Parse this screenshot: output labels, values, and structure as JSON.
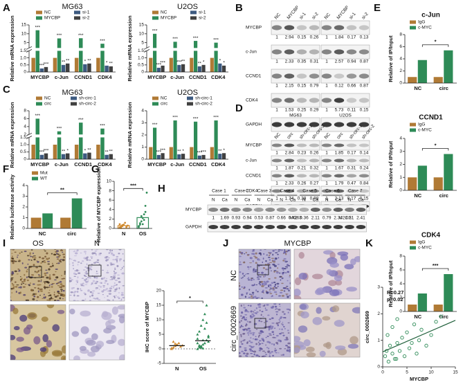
{
  "A": {
    "label": "A",
    "charts": [
      {
        "type": "bar",
        "title": "MG63",
        "ylabel": "Relative mRNA expression",
        "categories": [
          "MYCBP",
          "c-Jun",
          "CCND1",
          "CDK4"
        ],
        "ylim": [
          0,
          15
        ],
        "ybreak": [
          1.5,
          2
        ],
        "yticks": [
          0,
          0.5,
          {
            "value": 1,
            "label": "1.0"
          },
          1.5,
          5,
          10,
          15
        ],
        "series": [
          {
            "name": "NC",
            "color": "#b07a35",
            "values": [
              1,
              1,
              1,
              1
            ]
          },
          {
            "name": "MYCBP",
            "color": "#2e8b57",
            "values": [
              12,
              7.4,
              7.5,
              4.4
            ],
            "sig": [
              "***",
              "***",
              "***",
              "***"
            ]
          },
          {
            "name": "si-1",
            "color": "#3d5a80",
            "values": [
              0.25,
              0.5,
              0.55,
              0.45
            ],
            "sig": [
              "***",
              "**",
              "*",
              "*"
            ]
          },
          {
            "name": "si-2",
            "color": "#404040",
            "values": [
              0.35,
              0.6,
              0.6,
              0.4
            ],
            "sig": [
              "***",
              "**",
              "**",
              "**"
            ]
          }
        ]
      },
      {
        "type": "bar",
        "title": "U2OS",
        "ylabel": "Relative mRNA expression",
        "categories": [
          "MYCBP",
          "c-Jun",
          "CCND1",
          "CDK4"
        ],
        "ylim": [
          0,
          15
        ],
        "ybreak": [
          1.5,
          2
        ],
        "yticks": [
          0,
          0.5,
          {
            "value": 1,
            "label": "1.0"
          },
          1.5,
          5,
          10,
          15
        ],
        "series": [
          {
            "name": "NC",
            "color": "#b07a35",
            "values": [
              1,
              1,
              1,
              1
            ]
          },
          {
            "name": "MYCBP",
            "color": "#2e8b57",
            "values": [
              10,
              5.5,
              6,
              5
            ],
            "sig": [
              "***",
              "***",
              "***",
              "***"
            ]
          },
          {
            "name": "si-1",
            "color": "#3d5a80",
            "values": [
              0.3,
              0.5,
              0.4,
              0.6
            ],
            "sig": [
              "***",
              "***",
              "**",
              "*"
            ]
          },
          {
            "name": "si-2",
            "color": "#404040",
            "values": [
              0.45,
              0.55,
              0.5,
              0.45
            ],
            "sig": [
              "***",
              "**",
              "*",
              "*"
            ]
          }
        ]
      }
    ]
  },
  "B": {
    "label": "B",
    "blot": {
      "columns": [
        "NC",
        "MYCBP",
        "si-1",
        "si-2",
        "NC",
        "MYCBP",
        "si-1",
        "si-2"
      ],
      "rows": [
        {
          "label": "MYCBP",
          "values": [
            1,
            2.94,
            0.15,
            0.26,
            1,
            1.84,
            0.17,
            0.13
          ]
        },
        {
          "label": "c-Jun",
          "values": [
            1,
            2.33,
            0.35,
            0.31,
            1,
            2.57,
            0.94,
            0.87
          ]
        },
        {
          "label": "CCND1",
          "values": [
            1,
            2.15,
            0.15,
            0.79,
            1,
            0.12,
            0.66,
            0.87
          ]
        },
        {
          "label": "CDK4",
          "values": [
            1,
            1.53,
            0.25,
            0.29,
            1,
            5.73,
            0.11,
            0.15
          ]
        },
        {
          "label": "GAPDH"
        }
      ]
    }
  },
  "C": {
    "label": "C",
    "charts": [
      {
        "type": "bar",
        "title": "MG63",
        "ylabel": "Relative mRNA expression",
        "categories": [
          "MYCBP",
          "c-Jun",
          "CCND1",
          "CDK4"
        ],
        "ylim": [
          0,
          8
        ],
        "ybreak": [
          1.5,
          2
        ],
        "yticks": [
          0,
          0.5,
          {
            "value": 1,
            "label": "1.0"
          },
          1.5,
          2,
          4,
          6,
          8
        ],
        "series": [
          {
            "name": "NC",
            "color": "#b07a35",
            "values": [
              1,
              1,
              1,
              1
            ]
          },
          {
            "name": "circ",
            "color": "#2e8b57",
            "values": [
              6,
              2.8,
              5,
              3.5
            ],
            "sig": [
              "***",
              "***",
              "***",
              "***"
            ]
          },
          {
            "name": "sh-circ-1",
            "color": "#3d5a80",
            "values": [
              0.3,
              0.35,
              0.4,
              0.3
            ],
            "sig": [
              "***",
              "**",
              "*",
              "**"
            ]
          },
          {
            "name": "sh-circ-2",
            "color": "#404040",
            "values": [
              0.4,
              0.4,
              0.45,
              0.35
            ],
            "sig": [
              "***",
              "*",
              "**",
              "**"
            ]
          }
        ]
      },
      {
        "type": "bar",
        "title": "U2OS",
        "ylabel": "Relative mRNA expression",
        "categories": [
          "MYCBP",
          "c-Jun",
          "CCND1",
          "CDK4"
        ],
        "ylim": [
          0,
          4
        ],
        "yticks": [
          0,
          1,
          2,
          3,
          4
        ],
        "series": [
          {
            "name": "NC",
            "color": "#b07a35",
            "values": [
              1,
              1,
              1,
              1
            ]
          },
          {
            "name": "circ",
            "color": "#2e8b57",
            "values": [
              2.6,
              3.2,
              3.1,
              3.2
            ],
            "sig": [
              "***",
              "***",
              "***",
              "***"
            ]
          },
          {
            "name": "sh-circ-1",
            "color": "#3d5a80",
            "values": [
              0.35,
              0.4,
              0.3,
              0.45
            ],
            "sig": [
              "***",
              "**",
              "***",
              "**"
            ]
          },
          {
            "name": "sh-circ-2",
            "color": "#404040",
            "values": [
              0.5,
              0.45,
              0.35,
              0.5
            ],
            "sig": [
              "***",
              "*",
              "***",
              "*"
            ]
          }
        ]
      }
    ]
  },
  "D": {
    "label": "D",
    "blot": {
      "groups": [
        "MG63",
        "U2OS"
      ],
      "columns": [
        "NC",
        "circ",
        "sh-circ-1",
        "sh-circ-2",
        "NC",
        "circ",
        "sh-circ-1",
        "sh-circ-2"
      ],
      "rows": [
        {
          "label": "MYCBP",
          "values": [
            1,
            2.84,
            0.23,
            0.26,
            1,
            1.85,
            0.17,
            0.14
          ]
        },
        {
          "label": "c-Jun",
          "values": [
            1,
            1.87,
            0.21,
            0.32,
            1,
            1.67,
            0.31,
            0.24
          ]
        },
        {
          "label": "CCND1",
          "values": [
            1,
            2.33,
            0.26,
            0.27,
            1,
            1.79,
            0.47,
            0.84
          ]
        },
        {
          "label": "CDK4",
          "values": [
            1,
            1.74,
            0.38,
            0.88,
            1,
            2.13,
            0.17,
            0.15
          ]
        },
        {
          "label": "GAPDH"
        }
      ]
    }
  },
  "E": {
    "label": "E",
    "charts": [
      {
        "type": "bar",
        "title": "c-Jun",
        "ylabel": "Relative of IP/Input",
        "categories": [
          "NC",
          "circ"
        ],
        "ylim": [
          0,
          8
        ],
        "yticks": [
          0,
          2,
          4,
          6,
          8
        ],
        "sig_bracket": "*",
        "series": [
          {
            "name": "IgG",
            "color": "#b07a35",
            "values": [
              1,
              1
            ]
          },
          {
            "name": "c-MYC",
            "color": "#2e8b57",
            "values": [
              3.8,
              5.4
            ]
          }
        ]
      },
      {
        "type": "bar",
        "title": "CCND1",
        "ylabel": "Relative of IP/Input",
        "categories": [
          "NC",
          "circ"
        ],
        "ylim": [
          0,
          4
        ],
        "yticks": [
          0,
          1,
          2,
          3,
          4
        ],
        "sig_bracket": "*",
        "series": [
          {
            "name": "IgG",
            "color": "#b07a35",
            "values": [
              1,
              1
            ]
          },
          {
            "name": "c-MYC",
            "color": "#2e8b57",
            "values": [
              1.9,
              2.8
            ]
          }
        ]
      },
      {
        "type": "bar",
        "title": "CDK4",
        "ylabel": "Relative of IP/Input",
        "categories": [
          "NC",
          "circ"
        ],
        "ylim": [
          0,
          8
        ],
        "yticks": [
          0,
          2,
          4,
          6,
          8
        ],
        "sig_bracket": "***",
        "series": [
          {
            "name": "IgG",
            "color": "#b07a35",
            "values": [
              1,
              1
            ]
          },
          {
            "name": "c-MYC",
            "color": "#2e8b57",
            "values": [
              2.6,
              5.4
            ]
          }
        ]
      }
    ]
  },
  "F": {
    "label": "F",
    "chart": {
      "type": "bar",
      "ylabel": "Relative luciferase activity",
      "categories": [
        "NC",
        "circ"
      ],
      "ylim": [
        0,
        4
      ],
      "yticks": [
        0,
        1,
        2,
        3,
        4
      ],
      "sig_bracket": "**",
      "series": [
        {
          "name": "Mut",
          "color": "#b07a35",
          "values": [
            1,
            1
          ]
        },
        {
          "name": "WT",
          "color": "#2e8b57",
          "values": [
            1.4,
            2.8
          ]
        }
      ]
    }
  },
  "G": {
    "label": "G",
    "chart": {
      "type": "bar_points",
      "ylabel": "Relative of MYCBP expression",
      "categories": [
        "N",
        "OS"
      ],
      "colors": [
        "#d08a2e",
        "#2e8b57"
      ],
      "ylim": [
        0,
        10
      ],
      "yticks": [
        0,
        2,
        4,
        6,
        8,
        10
      ],
      "sig_bracket": "***",
      "values": [
        0.6,
        2.3
      ],
      "points": [
        [
          0.2,
          0.4,
          0.5,
          0.8,
          1.2,
          0.3,
          0.6,
          0.9,
          0.1,
          0.7
        ],
        [
          0.3,
          0.8,
          1.5,
          2.2,
          3.0,
          4.8,
          7.6,
          0.5,
          1.1,
          2.6,
          0.9,
          1.8,
          3.5
        ]
      ]
    }
  },
  "H": {
    "label": "H",
    "blot": {
      "cases": [
        "Case 1",
        "Case 2",
        "Case 3",
        "Case 4",
        "Case 5",
        "Case 6",
        "Case 7"
      ],
      "lanes": [
        "N",
        "Ca"
      ],
      "rows": [
        {
          "label": "MYCBP",
          "values": [
            1,
            1.69,
            0.93,
            0.94,
            0.53,
            0.87,
            0.66,
            0.42,
            0.36,
            2.11,
            0.79,
            2.34,
            1.21,
            2.41
          ]
        },
        {
          "label": "GAPDH"
        }
      ]
    }
  },
  "I": {
    "label": "I",
    "images": [
      "OS",
      "N"
    ],
    "chart": {
      "type": "dot",
      "ylabel": "IHC score of MYCBP",
      "categories": [
        "N",
        "OS"
      ],
      "colors": [
        "#d08a2e",
        "#2e8b57"
      ],
      "ylim": [
        -5,
        20
      ],
      "yticks": [
        -5,
        0,
        5,
        10,
        15,
        20
      ],
      "sig_bracket": "*",
      "values": [
        1.1,
        2.8
      ],
      "points": [
        [
          0,
          0.5,
          1,
          1.5,
          2,
          0.8,
          1.2,
          0.3,
          2.5,
          1.8
        ],
        [
          0,
          0.5,
          1,
          1.5,
          2,
          3,
          4,
          5,
          6,
          8,
          10,
          12,
          15,
          2.5,
          3.5,
          1.2,
          0.8,
          0.2,
          7,
          9,
          4.5,
          2,
          1,
          0.5,
          3
        ]
      ]
    }
  },
  "J": {
    "label": "J",
    "title": "MYCBP",
    "images": [
      "NC",
      "circ_0002669"
    ]
  },
  "K": {
    "label": "K",
    "chart": {
      "type": "scatter",
      "xlabel": "MYCBP",
      "ylabel": "circ_0002669",
      "annotations": [
        "R=0.27",
        "p=0.02"
      ],
      "color": "#2e8b57",
      "xlim": [
        0,
        15
      ],
      "xticks": [
        0,
        5,
        10,
        15
      ],
      "ylim": [
        0,
        3
      ],
      "yticks": [
        0,
        1,
        2,
        3
      ],
      "x": [
        0.5,
        1,
        1.2,
        1.5,
        2,
        2,
        2.5,
        3,
        3,
        3.5,
        4,
        4.5,
        5,
        5.5,
        6,
        6.5,
        7,
        7.5,
        8,
        9,
        10,
        11,
        12,
        0.8,
        2.8
      ],
      "y": [
        0.4,
        1.2,
        0.2,
        0.8,
        0.5,
        1.5,
        0.3,
        0.9,
        1.8,
        0.6,
        1.1,
        0.4,
        1.3,
        0.7,
        0.9,
        1.6,
        0.5,
        1.0,
        1.4,
        0.8,
        1.2,
        1.7,
        1.9,
        0.6,
        0.3
      ]
    }
  }
}
